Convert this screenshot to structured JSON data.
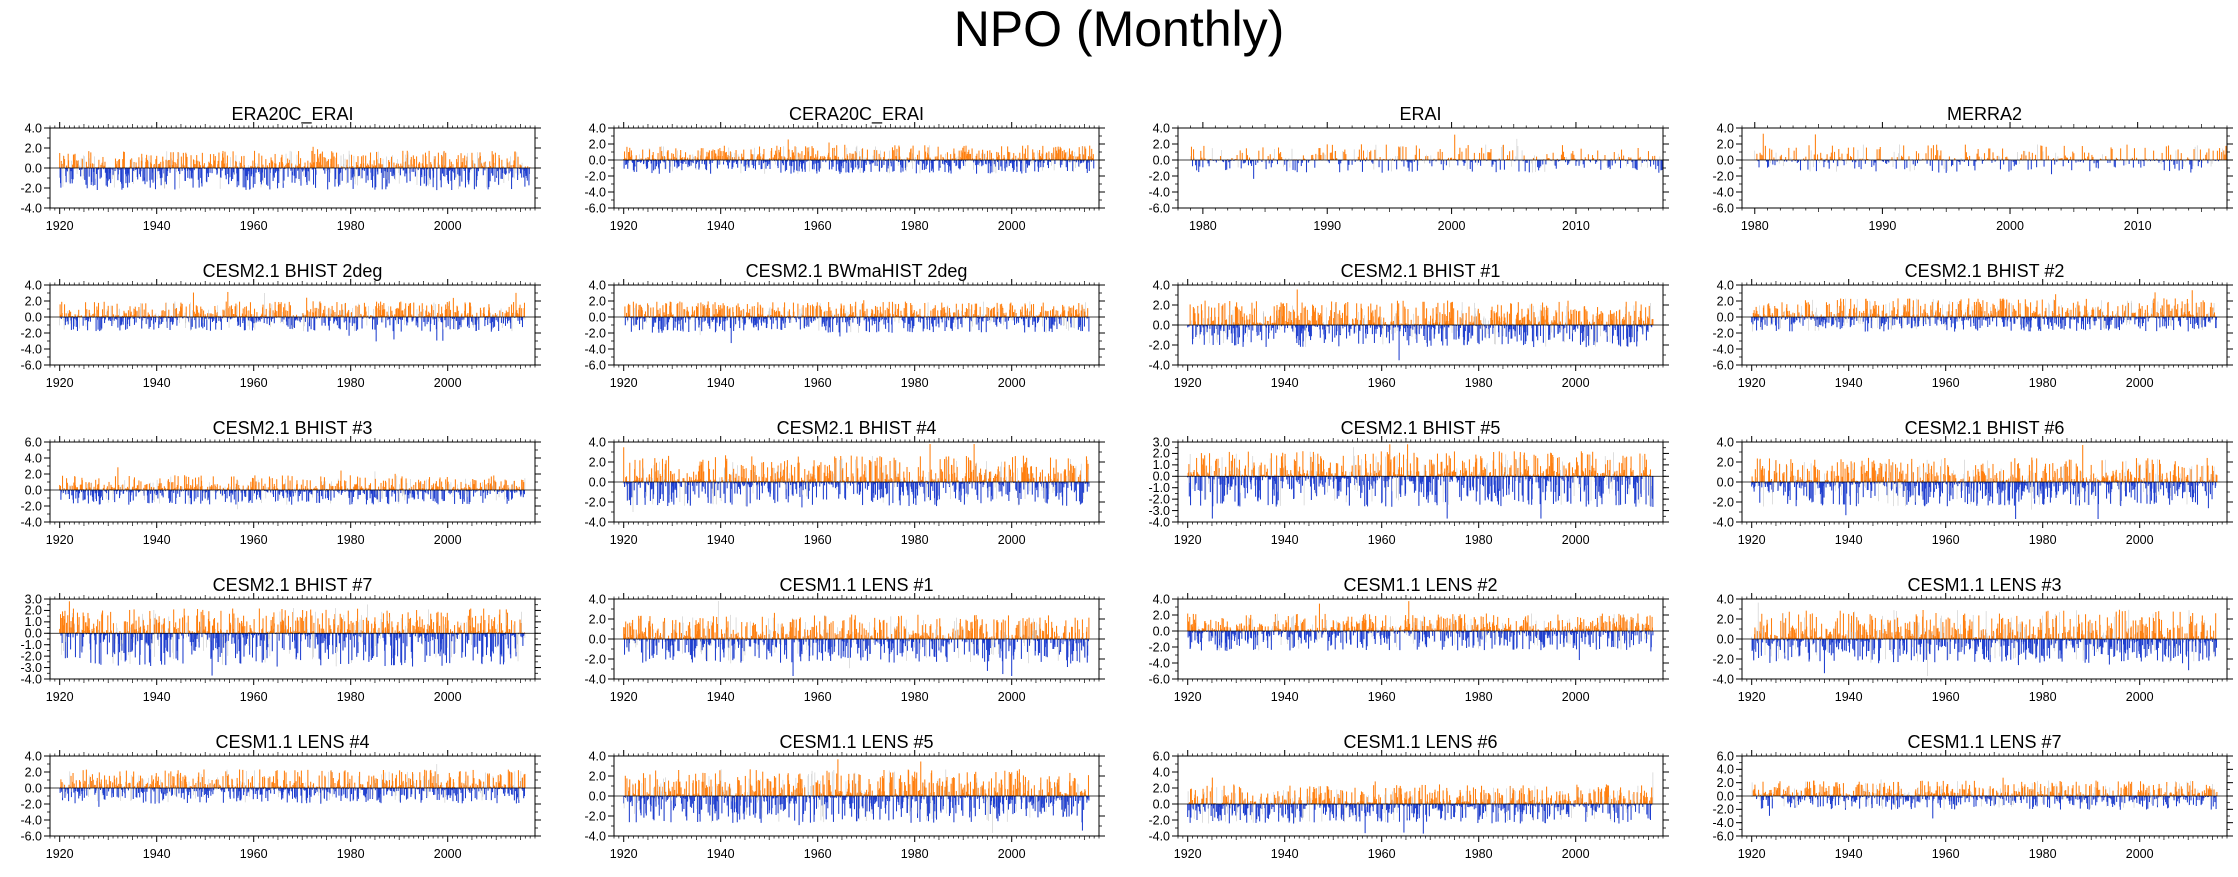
{
  "title": "NPO (Monthly)",
  "colors": {
    "positive": "#ff7f0e",
    "negative": "#1f3fcf",
    "axis": "#000000",
    "faint": "#c8c8c8"
  },
  "chart_data": [
    {
      "type": "bar",
      "title": "ERA20C_ERAI",
      "x_start": 1920,
      "x_end": 2016,
      "xlim": [
        1918,
        2018
      ],
      "xticks": [
        1920,
        1940,
        1960,
        1980,
        2000
      ],
      "ylim": [
        -4.0,
        4.0
      ],
      "yticks": [
        "4.0",
        "2.0",
        "0.0",
        "-2.0",
        "-4.0"
      ],
      "amp": [
        1.4,
        1.8
      ],
      "seed": 11
    },
    {
      "type": "bar",
      "title": "CERA20C_ERAI",
      "x_start": 1920,
      "x_end": 2016,
      "xlim": [
        1918,
        2018
      ],
      "xticks": [
        1920,
        1940,
        1960,
        1980,
        2000
      ],
      "ylim": [
        -6.0,
        4.0
      ],
      "yticks": [
        "4.0",
        "2.0",
        "0.0",
        "-2.0",
        "-4.0",
        "-6.0"
      ],
      "amp": [
        1.5,
        1.4
      ],
      "seed": 12
    },
    {
      "type": "bar",
      "title": "ERAI",
      "x_start": 1979,
      "x_end": 2016,
      "xlim": [
        1978,
        2017
      ],
      "xticks": [
        1980,
        1990,
        2000,
        2010
      ],
      "ylim": [
        -6.0,
        4.0
      ],
      "yticks": [
        "4.0",
        "2.0",
        "0.0",
        "-2.0",
        "-4.0",
        "-6.0"
      ],
      "amp": [
        1.6,
        1.3
      ],
      "seed": 13
    },
    {
      "type": "bar",
      "title": "MERRA2",
      "x_start": 1980,
      "x_end": 2016,
      "xlim": [
        1979,
        2017
      ],
      "xticks": [
        1980,
        1990,
        2000,
        2010
      ],
      "ylim": [
        -6.0,
        4.0
      ],
      "yticks": [
        "4.0",
        "2.0",
        "0.0",
        "-2.0",
        "-4.0",
        "-6.0"
      ],
      "amp": [
        1.6,
        1.3
      ],
      "seed": 14
    },
    {
      "type": "bar",
      "title": "CESM2.1 BHIST 2deg",
      "x_start": 1920,
      "x_end": 2015,
      "xlim": [
        1918,
        2018
      ],
      "xticks": [
        1920,
        1940,
        1960,
        1980,
        2000
      ],
      "ylim": [
        -6.0,
        4.0
      ],
      "yticks": [
        "4.0",
        "2.0",
        "0.0",
        "-2.0",
        "-4.0",
        "-6.0"
      ],
      "amp": [
        1.6,
        1.5
      ],
      "seed": 21
    },
    {
      "type": "bar",
      "title": "CESM2.1 BWmaHIST 2deg",
      "x_start": 1920,
      "x_end": 2015,
      "xlim": [
        1918,
        2018
      ],
      "xticks": [
        1920,
        1940,
        1960,
        1980,
        2000
      ],
      "ylim": [
        -6.0,
        4.0
      ],
      "yticks": [
        "4.0",
        "2.0",
        "0.0",
        "-2.0",
        "-4.0",
        "-6.0"
      ],
      "amp": [
        1.6,
        1.6
      ],
      "seed": 22
    },
    {
      "type": "bar",
      "title": "CESM2.1 BHIST #1",
      "x_start": 1920,
      "x_end": 2015,
      "xlim": [
        1918,
        2018
      ],
      "xticks": [
        1920,
        1940,
        1960,
        1980,
        2000
      ],
      "ylim": [
        -4.0,
        4.0
      ],
      "yticks": [
        "4.0",
        "2.0",
        "0.0",
        "-2.0",
        "-4.0"
      ],
      "amp": [
        2.0,
        1.8
      ],
      "seed": 23
    },
    {
      "type": "bar",
      "title": "CESM2.1 BHIST #2",
      "x_start": 1920,
      "x_end": 2015,
      "xlim": [
        1918,
        2018
      ],
      "xticks": [
        1920,
        1940,
        1960,
        1980,
        2000
      ],
      "ylim": [
        -6.0,
        4.0
      ],
      "yticks": [
        "4.0",
        "2.0",
        "0.0",
        "-2.0",
        "-4.0",
        "-6.0"
      ],
      "amp": [
        1.9,
        1.5
      ],
      "seed": 24
    },
    {
      "type": "bar",
      "title": "CESM2.1 BHIST #3",
      "x_start": 1920,
      "x_end": 2015,
      "xlim": [
        1918,
        2018
      ],
      "xticks": [
        1920,
        1940,
        1960,
        1980,
        2000
      ],
      "ylim": [
        -4.0,
        6.0
      ],
      "yticks": [
        "6.0",
        "4.0",
        "2.0",
        "0.0",
        "-2.0",
        "-4.0"
      ],
      "amp": [
        1.5,
        1.5
      ],
      "seed": 31
    },
    {
      "type": "bar",
      "title": "CESM2.1 BHIST #4",
      "x_start": 1920,
      "x_end": 2015,
      "xlim": [
        1918,
        2018
      ],
      "xticks": [
        1920,
        1940,
        1960,
        1980,
        2000
      ],
      "ylim": [
        -4.0,
        4.0
      ],
      "yticks": [
        "4.0",
        "2.0",
        "0.0",
        "-2.0",
        "-4.0"
      ],
      "amp": [
        2.2,
        2.0
      ],
      "seed": 32
    },
    {
      "type": "bar",
      "title": "CESM2.1 BHIST #5",
      "x_start": 1920,
      "x_end": 2015,
      "xlim": [
        1918,
        2018
      ],
      "xticks": [
        1920,
        1940,
        1960,
        1980,
        2000
      ],
      "ylim": [
        -4.0,
        3.0
      ],
      "yticks": [
        "3.0",
        "2.0",
        "1.0",
        "0.0",
        "-1.0",
        "-2.0",
        "-3.0",
        "-4.0"
      ],
      "amp": [
        1.8,
        2.2
      ],
      "seed": 33
    },
    {
      "type": "bar",
      "title": "CESM2.1 BHIST #6",
      "x_start": 1920,
      "x_end": 2015,
      "xlim": [
        1918,
        2018
      ],
      "xticks": [
        1920,
        1940,
        1960,
        1980,
        2000
      ],
      "ylim": [
        -4.0,
        4.0
      ],
      "yticks": [
        "4.0",
        "2.0",
        "0.0",
        "-2.0",
        "-4.0"
      ],
      "amp": [
        2.0,
        2.0
      ],
      "seed": 34
    },
    {
      "type": "bar",
      "title": "CESM2.1 BHIST #7",
      "x_start": 1920,
      "x_end": 2015,
      "xlim": [
        1918,
        2018
      ],
      "xticks": [
        1920,
        1940,
        1960,
        1980,
        2000
      ],
      "ylim": [
        -4.0,
        3.0
      ],
      "yticks": [
        "3.0",
        "2.0",
        "1.0",
        "0.0",
        "-1.0",
        "-2.0",
        "-3.0",
        "-4.0"
      ],
      "amp": [
        1.8,
        2.4
      ],
      "seed": 41
    },
    {
      "type": "bar",
      "title": "CESM1.1 LENS #1",
      "x_start": 1920,
      "x_end": 2015,
      "xlim": [
        1918,
        2018
      ],
      "xticks": [
        1920,
        1940,
        1960,
        1980,
        2000
      ],
      "ylim": [
        -4.0,
        4.0
      ],
      "yticks": [
        "4.0",
        "2.0",
        "0.0",
        "-2.0",
        "-4.0"
      ],
      "amp": [
        2.0,
        2.0
      ],
      "seed": 42
    },
    {
      "type": "bar",
      "title": "CESM1.1 LENS #2",
      "x_start": 1920,
      "x_end": 2015,
      "xlim": [
        1918,
        2018
      ],
      "xticks": [
        1920,
        1940,
        1960,
        1980,
        2000
      ],
      "ylim": [
        -6.0,
        4.0
      ],
      "yticks": [
        "4.0",
        "2.0",
        "0.0",
        "-2.0",
        "-4.0",
        "-6.0"
      ],
      "amp": [
        1.8,
        2.0
      ],
      "seed": 43
    },
    {
      "type": "bar",
      "title": "CESM1.1 LENS #3",
      "x_start": 1920,
      "x_end": 2015,
      "xlim": [
        1918,
        2018
      ],
      "xticks": [
        1920,
        1940,
        1960,
        1980,
        2000
      ],
      "ylim": [
        -4.0,
        4.0
      ],
      "yticks": [
        "4.0",
        "2.0",
        "0.0",
        "-2.0",
        "-4.0"
      ],
      "amp": [
        2.4,
        2.0
      ],
      "seed": 44
    },
    {
      "type": "bar",
      "title": "CESM1.1 LENS #4",
      "x_start": 1920,
      "x_end": 2015,
      "xlim": [
        1918,
        2018
      ],
      "xticks": [
        1920,
        1940,
        1960,
        1980,
        2000
      ],
      "ylim": [
        -6.0,
        4.0
      ],
      "yticks": [
        "4.0",
        "2.0",
        "0.0",
        "-2.0",
        "-4.0",
        "-6.0"
      ],
      "amp": [
        1.9,
        1.6
      ],
      "seed": 51
    },
    {
      "type": "bar",
      "title": "CESM1.1 LENS #5",
      "x_start": 1920,
      "x_end": 2015,
      "xlim": [
        1918,
        2018
      ],
      "xticks": [
        1920,
        1940,
        1960,
        1980,
        2000
      ],
      "ylim": [
        -4.0,
        4.0
      ],
      "yticks": [
        "4.0",
        "2.0",
        "0.0",
        "-2.0",
        "-4.0"
      ],
      "amp": [
        2.2,
        2.2
      ],
      "seed": 52
    },
    {
      "type": "bar",
      "title": "CESM1.1 LENS #6",
      "x_start": 1920,
      "x_end": 2015,
      "xlim": [
        1918,
        2018
      ],
      "xticks": [
        1920,
        1940,
        1960,
        1980,
        2000
      ],
      "ylim": [
        -4.0,
        6.0
      ],
      "yticks": [
        "6.0",
        "4.0",
        "2.0",
        "0.0",
        "-2.0",
        "-4.0"
      ],
      "amp": [
        2.0,
        2.0
      ],
      "seed": 53
    },
    {
      "type": "bar",
      "title": "CESM1.1 LENS #7",
      "x_start": 1920,
      "x_end": 2015,
      "xlim": [
        1918,
        2018
      ],
      "xticks": [
        1920,
        1940,
        1960,
        1980,
        2000
      ],
      "ylim": [
        -6.0,
        6.0
      ],
      "yticks": [
        "6.0",
        "4.0",
        "2.0",
        "0.0",
        "-2.0",
        "-4.0",
        "-6.0"
      ],
      "amp": [
        1.9,
        1.7
      ],
      "seed": 54
    }
  ]
}
